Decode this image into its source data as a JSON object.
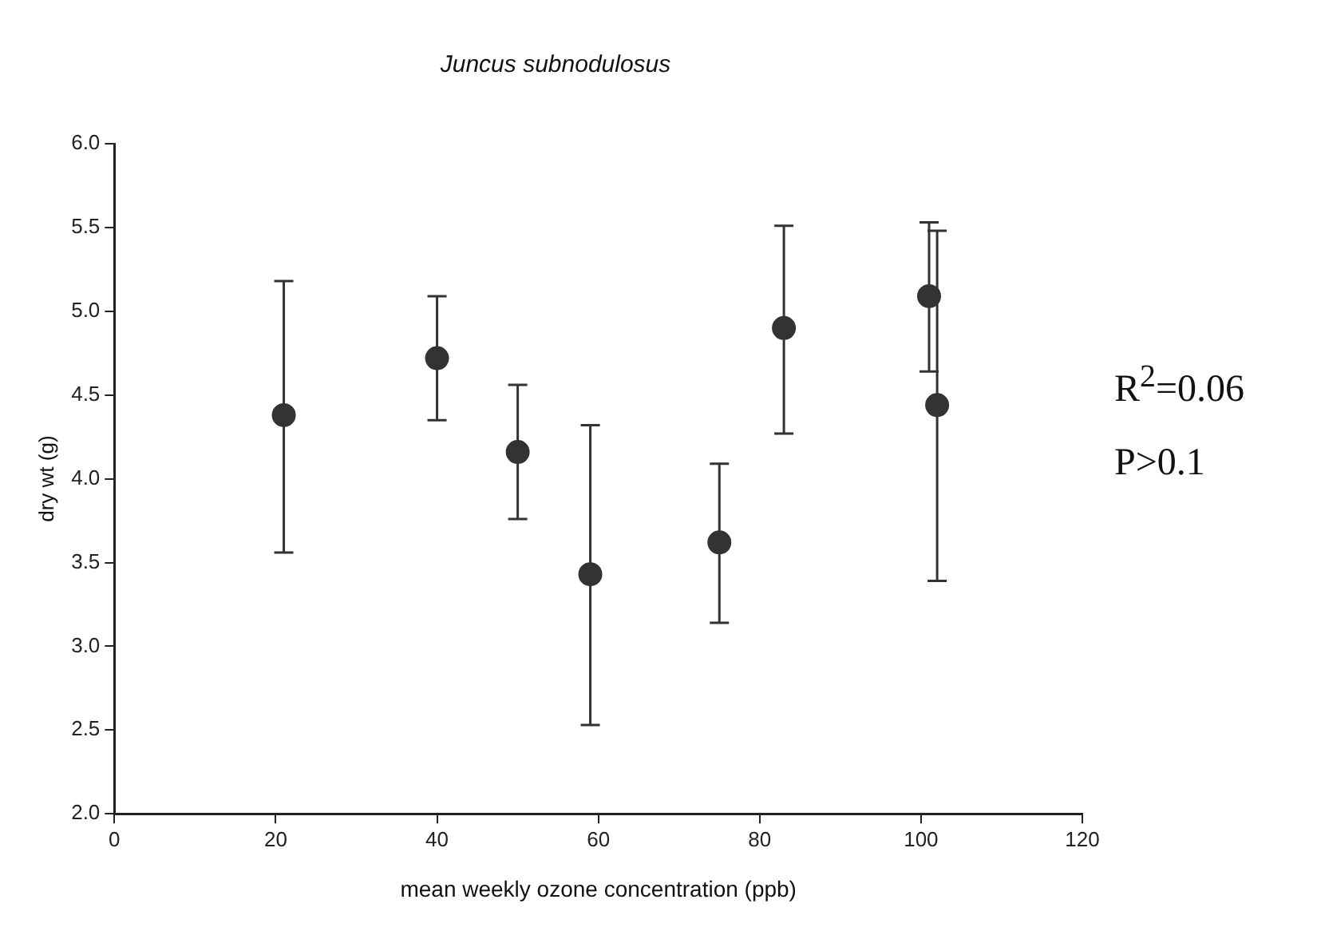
{
  "chart_data": {
    "type": "scatter",
    "title": "Juncus subnodulosus",
    "xlabel": "mean weekly ozone concentration (ppb)",
    "ylabel": "dry wt (g)",
    "x": [
      21,
      40,
      50,
      59,
      75,
      83,
      101,
      102
    ],
    "values": [
      4.38,
      4.72,
      4.16,
      3.43,
      3.62,
      4.9,
      5.09,
      4.44
    ],
    "errors": [
      [
        3.56,
        5.18
      ],
      [
        4.35,
        5.09
      ],
      [
        3.76,
        4.56
      ],
      [
        2.53,
        4.32
      ],
      [
        3.14,
        4.09
      ],
      [
        4.27,
        5.51
      ],
      [
        4.64,
        5.53
      ],
      [
        3.39,
        5.48
      ]
    ],
    "color": "#333333",
    "marker": "circle",
    "xlim": [
      0,
      120
    ],
    "xticks": [
      0,
      20,
      40,
      60,
      80,
      100,
      120
    ],
    "ylim": [
      2,
      6
    ],
    "yticks": [
      {
        "value": 2,
        "label": "2.0"
      },
      2.5,
      {
        "value": 3,
        "label": "3.0"
      },
      3.5,
      {
        "value": 4,
        "label": "4.0"
      },
      4.5,
      {
        "value": 5,
        "label": "5.0"
      },
      5.5,
      {
        "value": 6,
        "label": "6.0"
      }
    ],
    "annotations": [
      "R$^{2}$=0.06",
      "P>0.1"
    ],
    "grid": false,
    "legend": false
  }
}
